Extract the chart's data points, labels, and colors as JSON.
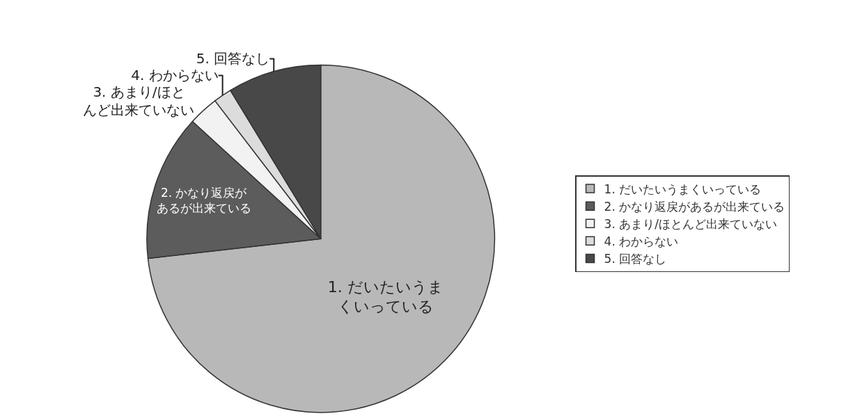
{
  "chart_data": {
    "type": "pie",
    "categories": [
      "1. だいたいうまくいっている",
      "2. かなり返戻があるが出来ている",
      "3. あまり/ほとんど出来ていない",
      "4. わからない",
      "5. 回答なし"
    ],
    "values": [
      73.2,
      13.6,
      2.8,
      1.7,
      8.7
    ],
    "colors": [
      "#b8b8b8",
      "#5c5c5c",
      "#f2f2f2",
      "#dcdcdc",
      "#484848"
    ],
    "annotations": [
      "1. だいたいうまくいっている",
      "2. かなり返戻があるが出来ている",
      "3. あまり/ほとんど出来ていない",
      "4. わからない",
      "5. 回答なし"
    ],
    "legend": "right"
  }
}
